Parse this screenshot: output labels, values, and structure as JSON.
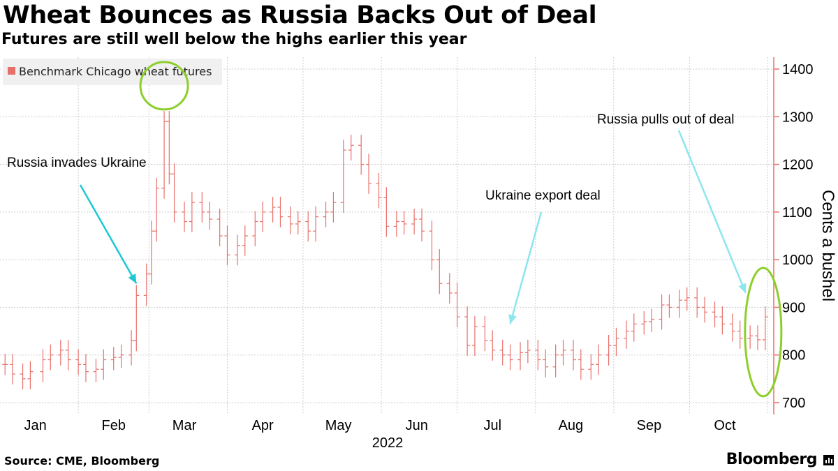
{
  "title": "Wheat Bounces as Russia Backs Out of Deal",
  "subtitle": "Futures are still well below the highs earlier this year",
  "source": "Source: CME, Bloomberg",
  "brand": "Bloomberg",
  "colors": {
    "series": "#e8706b",
    "legend_bg": "#f0f0f0",
    "callout_circle": "#8ccf2a",
    "arrow_dark": "#1bc8d4",
    "arrow_light": "#8be6ee",
    "grid": "#cccccc"
  },
  "chart_data": {
    "type": "ohlc-bar",
    "legend": [
      "Benchmark Chicago wheat futures"
    ],
    "ylabel": "Cents a bushel",
    "ylim": [
      680,
      1420
    ],
    "yticks": [
      700,
      800,
      900,
      1000,
      1100,
      1200,
      1300,
      1400
    ],
    "x_range": [
      "2022-01-01",
      "2022-10-28"
    ],
    "xtick_labels": [
      "Jan",
      "Feb",
      "Mar",
      "Apr",
      "May",
      "Jun",
      "Jul",
      "Aug",
      "Sep",
      "Oct"
    ],
    "xtick_dates": [
      "2022-01-15",
      "2022-02-15",
      "2022-03-15",
      "2022-04-15",
      "2022-05-15",
      "2022-06-15",
      "2022-07-15",
      "2022-08-15",
      "2022-09-15",
      "2022-10-15"
    ],
    "x_year_label": "2022",
    "grid": true,
    "annotations": [
      {
        "text": "Russia invades Ukraine",
        "date": "2022-02-24",
        "value": 950
      },
      {
        "text": "Ukraine export deal",
        "date": "2022-07-22",
        "value": 865
      },
      {
        "text": "Russia pulls out of deal",
        "date": "2022-10-31",
        "value": 930
      }
    ],
    "highlight_circles": [
      {
        "date": "2022-03-07",
        "value": 1365
      },
      {
        "date": "2022-10-31",
        "value": 848
      }
    ],
    "series": [
      {
        "name": "Benchmark Chicago wheat futures",
        "points": [
          [
            "2022-01-03",
            780
          ],
          [
            "2022-01-06",
            760
          ],
          [
            "2022-01-10",
            750
          ],
          [
            "2022-01-13",
            765
          ],
          [
            "2022-01-18",
            790
          ],
          [
            "2022-01-21",
            800
          ],
          [
            "2022-01-25",
            810
          ],
          [
            "2022-01-28",
            790
          ],
          [
            "2022-02-01",
            780
          ],
          [
            "2022-02-04",
            765
          ],
          [
            "2022-02-08",
            770
          ],
          [
            "2022-02-11",
            790
          ],
          [
            "2022-02-15",
            795
          ],
          [
            "2022-02-18",
            800
          ],
          [
            "2022-02-22",
            830
          ],
          [
            "2022-02-24",
            925
          ],
          [
            "2022-02-28",
            970
          ],
          [
            "2022-03-02",
            1060
          ],
          [
            "2022-03-04",
            1150
          ],
          [
            "2022-03-07",
            1290
          ],
          [
            "2022-03-09",
            1180
          ],
          [
            "2022-03-11",
            1100
          ],
          [
            "2022-03-15",
            1080
          ],
          [
            "2022-03-18",
            1120
          ],
          [
            "2022-03-22",
            1100
          ],
          [
            "2022-03-25",
            1085
          ],
          [
            "2022-03-29",
            1050
          ],
          [
            "2022-04-01",
            1010
          ],
          [
            "2022-04-05",
            1030
          ],
          [
            "2022-04-08",
            1050
          ],
          [
            "2022-04-12",
            1080
          ],
          [
            "2022-04-15",
            1100
          ],
          [
            "2022-04-19",
            1110
          ],
          [
            "2022-04-22",
            1090
          ],
          [
            "2022-04-26",
            1075
          ],
          [
            "2022-04-29",
            1080
          ],
          [
            "2022-05-03",
            1060
          ],
          [
            "2022-05-06",
            1090
          ],
          [
            "2022-05-10",
            1100
          ],
          [
            "2022-05-13",
            1120
          ],
          [
            "2022-05-17",
            1230
          ],
          [
            "2022-05-20",
            1240
          ],
          [
            "2022-05-24",
            1200
          ],
          [
            "2022-05-27",
            1160
          ],
          [
            "2022-05-31",
            1130
          ],
          [
            "2022-06-03",
            1070
          ],
          [
            "2022-06-07",
            1080
          ],
          [
            "2022-06-10",
            1075
          ],
          [
            "2022-06-14",
            1085
          ],
          [
            "2022-06-17",
            1060
          ],
          [
            "2022-06-21",
            1000
          ],
          [
            "2022-06-24",
            950
          ],
          [
            "2022-06-28",
            930
          ],
          [
            "2022-07-01",
            880
          ],
          [
            "2022-07-05",
            820
          ],
          [
            "2022-07-08",
            860
          ],
          [
            "2022-07-12",
            830
          ],
          [
            "2022-07-15",
            810
          ],
          [
            "2022-07-19",
            800
          ],
          [
            "2022-07-22",
            790
          ],
          [
            "2022-07-26",
            805
          ],
          [
            "2022-07-29",
            810
          ],
          [
            "2022-08-02",
            790
          ],
          [
            "2022-08-05",
            775
          ],
          [
            "2022-08-09",
            800
          ],
          [
            "2022-08-12",
            810
          ],
          [
            "2022-08-16",
            790
          ],
          [
            "2022-08-19",
            770
          ],
          [
            "2022-08-23",
            780
          ],
          [
            "2022-08-26",
            800
          ],
          [
            "2022-08-30",
            820
          ],
          [
            "2022-09-02",
            835
          ],
          [
            "2022-09-06",
            850
          ],
          [
            "2022-09-09",
            865
          ],
          [
            "2022-09-13",
            870
          ],
          [
            "2022-09-16",
            875
          ],
          [
            "2022-09-20",
            905
          ],
          [
            "2022-09-23",
            900
          ],
          [
            "2022-09-27",
            915
          ],
          [
            "2022-09-30",
            920
          ],
          [
            "2022-10-04",
            900
          ],
          [
            "2022-10-07",
            890
          ],
          [
            "2022-10-11",
            880
          ],
          [
            "2022-10-14",
            865
          ],
          [
            "2022-10-18",
            850
          ],
          [
            "2022-10-21",
            835
          ],
          [
            "2022-10-25",
            840
          ],
          [
            "2022-10-28",
            832
          ],
          [
            "2022-10-31",
            880
          ]
        ]
      }
    ]
  }
}
